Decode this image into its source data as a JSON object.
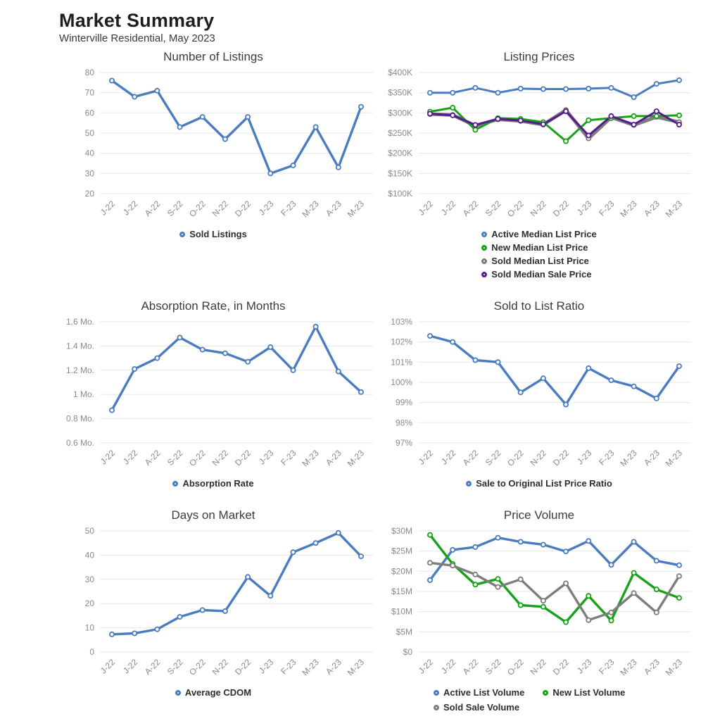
{
  "header": {
    "title": "Market Summary",
    "subtitle": "Winterville Residential, May 2023"
  },
  "colors": {
    "blue": "#4a7cbf",
    "green": "#17a317",
    "gray": "#7d7d7d",
    "purple": "#571a8e",
    "grid": "#e7e7e7",
    "tick_text": "#8a8a8a",
    "chart_title_text": "#3c3c3c"
  },
  "chart_data": [
    {
      "type": "line",
      "title": "Number of Listings",
      "x": [
        "J-22",
        "J-22",
        "A-22",
        "S-22",
        "O-22",
        "N-22",
        "D-22",
        "J-23",
        "F-23",
        "M-23",
        "A-23",
        "M-23"
      ],
      "ylim": [
        20,
        80
      ],
      "yticks": [
        {
          "v": 80,
          "label": "80"
        },
        {
          "v": 70,
          "label": "70"
        },
        {
          "v": 60,
          "label": "60"
        },
        {
          "v": 50,
          "label": "50"
        },
        {
          "v": 40,
          "label": "40"
        },
        {
          "v": 30,
          "label": "30"
        },
        {
          "v": 20,
          "label": "20"
        }
      ],
      "grid": true,
      "legend_position": "bottom",
      "legend_layout": "row",
      "series": [
        {
          "name": "Sold Listings",
          "color": "#4a7cbf",
          "line_width": 3.4,
          "values": [
            76,
            68,
            71,
            53,
            58,
            47,
            58,
            30,
            34,
            53,
            33,
            63
          ]
        }
      ],
      "legend": [
        {
          "label": "Sold Listings",
          "color": "#4a7cbf"
        }
      ]
    },
    {
      "type": "line",
      "title": "Listing Prices",
      "unit": "USD thousands",
      "x": [
        "J-22",
        "J-22",
        "A-22",
        "S-22",
        "O-22",
        "N-22",
        "D-22",
        "J-23",
        "F-23",
        "M-23",
        "A-23",
        "M-23"
      ],
      "ylim": [
        100,
        400
      ],
      "yticks": [
        {
          "v": 400,
          "label": "$400K"
        },
        {
          "v": 350,
          "label": "$350K"
        },
        {
          "v": 300,
          "label": "$300K"
        },
        {
          "v": 250,
          "label": "$250K"
        },
        {
          "v": 200,
          "label": "$200K"
        },
        {
          "v": 150,
          "label": "$150K"
        },
        {
          "v": 100,
          "label": "$100K"
        }
      ],
      "grid": true,
      "legend_position": "bottom",
      "legend_layout": "column",
      "series": [
        {
          "name": "Active Median List Price",
          "color": "#4a7cbf",
          "line_width": 3,
          "values": [
            350,
            350,
            362,
            350,
            360,
            359,
            359,
            360,
            362,
            339,
            372,
            381
          ]
        },
        {
          "name": "Sold Median List Price",
          "color": "#7d7d7d",
          "line_width": 5,
          "values": [
            297,
            295,
            268,
            284,
            280,
            271,
            307,
            237,
            289,
            270,
            290,
            277
          ]
        },
        {
          "name": "New Median List Price",
          "color": "#17a317",
          "line_width": 3,
          "values": [
            303,
            313,
            258,
            287,
            285,
            277,
            230,
            282,
            287,
            292,
            292,
            294
          ]
        },
        {
          "name": "Sold Median Sale Price",
          "color": "#571a8e",
          "line_width": 3,
          "values": [
            298,
            294,
            270,
            285,
            281,
            272,
            304,
            244,
            292,
            271,
            304,
            271
          ]
        }
      ],
      "legend": [
        {
          "label": "Active Median List Price",
          "color": "#4a7cbf"
        },
        {
          "label": "New Median List Price",
          "color": "#17a317"
        },
        {
          "label": "Sold Median List Price",
          "color": "#7d7d7d"
        },
        {
          "label": "Sold Median Sale Price",
          "color": "#571a8e"
        }
      ]
    },
    {
      "type": "line",
      "title": "Absorption Rate, in Months",
      "unit": "Mo.",
      "x": [
        "J-22",
        "J-22",
        "A-22",
        "S-22",
        "O-22",
        "N-22",
        "D-22",
        "J-23",
        "F-23",
        "M-23",
        "A-23",
        "M-23"
      ],
      "ylim": [
        0.6,
        1.6
      ],
      "yticks": [
        {
          "v": 1.6,
          "label": "1.6 Mo."
        },
        {
          "v": 1.4,
          "label": "1.4 Mo."
        },
        {
          "v": 1.2,
          "label": "1.2 Mo."
        },
        {
          "v": 1.0,
          "label": "1 Mo."
        },
        {
          "v": 0.8,
          "label": "0.8 Mo."
        },
        {
          "v": 0.6,
          "label": "0.6 Mo."
        }
      ],
      "grid": true,
      "legend_position": "bottom",
      "legend_layout": "row",
      "series": [
        {
          "name": "Absorption Rate",
          "color": "#4a7cbf",
          "line_width": 3.4,
          "values": [
            0.87,
            1.21,
            1.3,
            1.47,
            1.37,
            1.34,
            1.27,
            1.39,
            1.2,
            1.56,
            1.19,
            1.02
          ]
        }
      ],
      "legend": [
        {
          "label": "Absorption Rate",
          "color": "#4a7cbf"
        }
      ]
    },
    {
      "type": "line",
      "title": "Sold to List Ratio",
      "unit": "%",
      "x": [
        "J-22",
        "J-22",
        "A-22",
        "S-22",
        "O-22",
        "N-22",
        "D-22",
        "J-23",
        "F-23",
        "M-23",
        "A-23",
        "M-23"
      ],
      "ylim": [
        97,
        103
      ],
      "yticks": [
        {
          "v": 103,
          "label": "103%"
        },
        {
          "v": 102,
          "label": "102%"
        },
        {
          "v": 101,
          "label": "101%"
        },
        {
          "v": 100,
          "label": "100%"
        },
        {
          "v": 99,
          "label": "99%"
        },
        {
          "v": 98,
          "label": "98%"
        },
        {
          "v": 97,
          "label": "97%"
        }
      ],
      "grid": true,
      "legend_position": "bottom",
      "legend_layout": "row",
      "series": [
        {
          "name": "Sale to Original List Price Ratio",
          "color": "#4a7cbf",
          "line_width": 3.4,
          "values": [
            102.3,
            102.0,
            101.1,
            101.0,
            99.5,
            100.2,
            98.9,
            100.7,
            100.1,
            99.8,
            99.2,
            100.8
          ]
        }
      ],
      "legend": [
        {
          "label": "Sale to Original List Price Ratio",
          "color": "#4a7cbf"
        }
      ]
    },
    {
      "type": "line",
      "title": "Days on Market",
      "unit": "days",
      "x": [
        "J-22",
        "J-22",
        "A-22",
        "S-22",
        "O-22",
        "N-22",
        "D-22",
        "J-23",
        "F-23",
        "M-23",
        "A-23",
        "M-23"
      ],
      "ylim": [
        0,
        50
      ],
      "yticks": [
        {
          "v": 50,
          "label": "50"
        },
        {
          "v": 40,
          "label": "40"
        },
        {
          "v": 30,
          "label": "30"
        },
        {
          "v": 20,
          "label": "20"
        },
        {
          "v": 10,
          "label": "10"
        },
        {
          "v": 0,
          "label": "0"
        }
      ],
      "grid": true,
      "legend_position": "bottom",
      "legend_layout": "row",
      "series": [
        {
          "name": "Average CDOM",
          "color": "#4a7cbf",
          "line_width": 3.4,
          "values": [
            7.3,
            7.7,
            9.4,
            14.5,
            17.3,
            16.9,
            31.0,
            23.2,
            41.2,
            45.0,
            49.2,
            39.5
          ]
        }
      ],
      "legend": [
        {
          "label": "Average CDOM",
          "color": "#4a7cbf"
        }
      ]
    },
    {
      "type": "line",
      "title": "Price Volume",
      "unit": "USD millions",
      "x": [
        "J-22",
        "J-22",
        "A-22",
        "S-22",
        "O-22",
        "N-22",
        "D-22",
        "J-23",
        "F-23",
        "M-23",
        "A-23",
        "M-23"
      ],
      "ylim": [
        0,
        30
      ],
      "yticks": [
        {
          "v": 30,
          "label": "$30M"
        },
        {
          "v": 25,
          "label": "$25M"
        },
        {
          "v": 20,
          "label": "$20M"
        },
        {
          "v": 15,
          "label": "$15M"
        },
        {
          "v": 10,
          "label": "$10M"
        },
        {
          "v": 5,
          "label": "$5M"
        },
        {
          "v": 0,
          "label": "$0"
        }
      ],
      "grid": true,
      "legend_position": "bottom",
      "legend_layout": "wrap",
      "series": [
        {
          "name": "Active List Volume",
          "color": "#4a7cbf",
          "line_width": 3.4,
          "values": [
            17.8,
            25.3,
            26.0,
            28.3,
            27.3,
            26.6,
            24.9,
            27.5,
            21.6,
            27.3,
            22.6,
            21.5
          ]
        },
        {
          "name": "New List Volume",
          "color": "#17a317",
          "line_width": 3.4,
          "values": [
            29.0,
            21.8,
            16.7,
            18.1,
            11.6,
            11.2,
            7.4,
            13.9,
            7.8,
            19.6,
            15.5,
            13.4
          ]
        },
        {
          "name": "Sold Sale Volume",
          "color": "#7d7d7d",
          "line_width": 3.4,
          "values": [
            22.1,
            21.4,
            19.2,
            16.1,
            18.0,
            12.7,
            17.0,
            7.9,
            9.8,
            14.6,
            9.8,
            18.8
          ]
        }
      ],
      "legend": [
        {
          "label": "Active List Volume",
          "color": "#4a7cbf"
        },
        {
          "label": "New List Volume",
          "color": "#17a317"
        },
        {
          "label": "Sold Sale Volume",
          "color": "#7d7d7d"
        }
      ]
    }
  ]
}
